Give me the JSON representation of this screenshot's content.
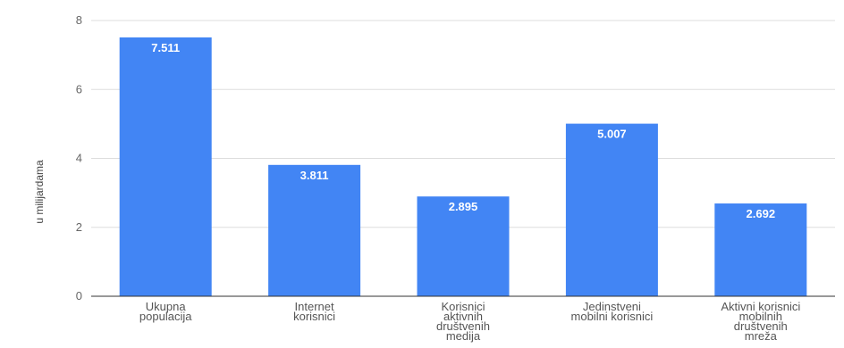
{
  "chart_data": {
    "type": "bar",
    "categories": [
      "Ukupna populacija",
      "Internet korisnici",
      "Korisnici aktivnih društvenih medija",
      "Jedinstveni mobilni korisnici",
      "Aktivni korisnici mobilnih društvenih mreža"
    ],
    "category_lines": [
      [
        "Ukupna",
        "populacija"
      ],
      [
        "Internet",
        "korisnici"
      ],
      [
        "Korisnici",
        "aktivnih",
        "društvenih",
        "medija"
      ],
      [
        "Jedinstveni",
        "mobilni korisnici"
      ],
      [
        "Aktivni korisnici",
        "mobilnih",
        "društvenih",
        "mreža"
      ]
    ],
    "values": [
      7.511,
      3.811,
      2.895,
      5.007,
      2.692
    ],
    "data_labels": [
      "7.511",
      "3.811",
      "2.895",
      "5.007",
      "2.692"
    ],
    "ylabel": "u milijardama",
    "ylim": [
      0,
      8
    ],
    "yticks": [
      "0",
      "2",
      "4",
      "6",
      "8"
    ],
    "grid": true,
    "colors": {
      "bar": "#4285f4",
      "grid": "#dddddd",
      "axis": "#333333"
    }
  }
}
